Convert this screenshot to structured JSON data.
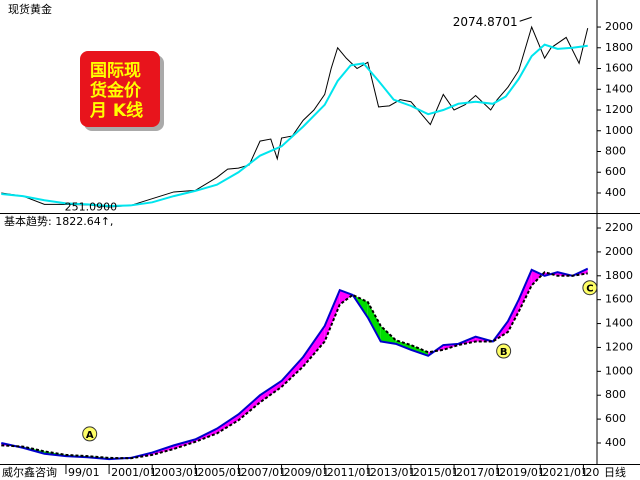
{
  "chart_data": [
    {
      "type": "line",
      "title": "现货黄金",
      "xlim": [
        1995.94,
        2023.63
      ],
      "ylim": [
        207,
        2145
      ],
      "yticks": [
        400,
        600,
        800,
        1000,
        1200,
        1400,
        1600,
        1800,
        2000
      ],
      "series": [
        {
          "color": "#000000",
          "x": [
            1996,
            1997,
            1998,
            1999,
            2000,
            2001,
            2002,
            2003,
            2004,
            2005,
            2006,
            2006.5,
            2007,
            2007.5,
            2008,
            2008.5,
            2008.8,
            2009,
            2009.5,
            2010,
            2010.5,
            2011,
            2011.3,
            2011.6,
            2012,
            2012.5,
            2013,
            2013.5,
            2014,
            2014.5,
            2015,
            2015.9,
            2016.5,
            2017,
            2017.5,
            2018,
            2018.7,
            2019,
            2019.5,
            2020,
            2020.6,
            2021.2,
            2021.5,
            2022.2,
            2022.8,
            2023.2
          ],
          "values": [
            400,
            370,
            290,
            290,
            285,
            265,
            280,
            345,
            410,
            425,
            550,
            630,
            640,
            670,
            900,
            920,
            730,
            930,
            950,
            1100,
            1200,
            1350,
            1600,
            1800,
            1700,
            1600,
            1660,
            1230,
            1240,
            1300,
            1280,
            1060,
            1350,
            1200,
            1250,
            1340,
            1200,
            1300,
            1420,
            1580,
            2000,
            1700,
            1800,
            1900,
            1650,
            1990
          ]
        },
        {
          "color": "#00e5ee",
          "x": [
            1996,
            1997,
            1998,
            1999,
            2000,
            2001,
            2002,
            2003,
            2004,
            2005,
            2006,
            2007,
            2008,
            2009,
            2010,
            2011,
            2011.6,
            2012.2,
            2012.8,
            2013.5,
            2014.2,
            2015,
            2015.8,
            2016.5,
            2017.2,
            2018,
            2018.8,
            2019.4,
            2020,
            2020.6,
            2021.2,
            2021.8,
            2022.5,
            2023.2
          ],
          "values": [
            390,
            370,
            330,
            300,
            290,
            275,
            280,
            310,
            370,
            420,
            480,
            600,
            760,
            850,
            1040,
            1250,
            1480,
            1630,
            1650,
            1480,
            1300,
            1240,
            1160,
            1200,
            1260,
            1280,
            1260,
            1330,
            1500,
            1720,
            1830,
            1790,
            1800,
            1820
          ]
        }
      ],
      "annotations": [
        {
          "text": "2074.8701",
          "x": 2020.6,
          "y": 2074.8701
        },
        {
          "text": "251.0900",
          "x": 1999.4,
          "y": 251.09
        }
      ],
      "logo": [
        "国际现",
        "货金价",
        "月  K线"
      ]
    },
    {
      "type": "line",
      "title": "基本趋势: 1822.64↑,",
      "xlim": [
        1995.94,
        2023.63
      ],
      "xticks": [
        {
          "value": 1999,
          "label": "99/01"
        },
        {
          "value": 2001,
          "label": "2001/01"
        },
        {
          "value": 2003,
          "label": "2003/01"
        },
        {
          "value": 2005,
          "label": "2005/01"
        },
        {
          "value": 2007,
          "label": "2007/01"
        },
        {
          "value": 2009,
          "label": "2009/01"
        },
        {
          "value": 2011,
          "label": "2011/01"
        },
        {
          "value": 2013,
          "label": "2013/01"
        },
        {
          "value": 2015,
          "label": "2015/01"
        },
        {
          "value": 2017,
          "label": "2017/01"
        },
        {
          "value": 2019,
          "label": "2019/01"
        },
        {
          "value": 2021,
          "label": "2021/01"
        },
        {
          "value": 2023,
          "label": "20"
        }
      ],
      "ylim": [
        224,
        2309
      ],
      "yticks": [
        400,
        600,
        800,
        1000,
        1200,
        1400,
        1600,
        1800,
        2000,
        2200
      ],
      "x": [
        1996,
        1997,
        1998,
        1999,
        2000,
        2001,
        2002,
        2003,
        2004,
        2005,
        2006,
        2007,
        2008,
        2009,
        2010,
        2011,
        2011.7,
        2012.3,
        2013,
        2013.6,
        2014.3,
        2015,
        2015.8,
        2016.5,
        2017.2,
        2018,
        2018.8,
        2019.5,
        2020,
        2020.6,
        2021.2,
        2021.8,
        2022.5,
        2023.2
      ],
      "band_colors": [
        "#ff00ff",
        "#00dd00"
      ],
      "series": [
        {
          "color": "#0000cc",
          "values": [
            400,
            360,
            310,
            290,
            280,
            265,
            275,
            320,
            380,
            430,
            520,
            640,
            800,
            920,
            1120,
            1380,
            1680,
            1640,
            1450,
            1250,
            1230,
            1180,
            1130,
            1220,
            1230,
            1290,
            1250,
            1420,
            1600,
            1850,
            1800,
            1830,
            1800,
            1860
          ]
        },
        {
          "color": "#000000",
          "values": [
            380,
            370,
            330,
            300,
            290,
            275,
            272,
            300,
            350,
            410,
            480,
            590,
            740,
            870,
            1040,
            1250,
            1560,
            1640,
            1580,
            1380,
            1260,
            1220,
            1160,
            1180,
            1220,
            1250,
            1250,
            1330,
            1500,
            1720,
            1830,
            1800,
            1800,
            1820
          ]
        }
      ],
      "annotations": [
        {
          "text": "A",
          "x": 2000.1,
          "y": 476
        },
        {
          "text": "B",
          "x": 2019.3,
          "y": 1170
        },
        {
          "text": "C",
          "x": 2023.3,
          "y": 1700
        }
      ],
      "source": "威尔鑫咨询",
      "period": "日线"
    }
  ]
}
